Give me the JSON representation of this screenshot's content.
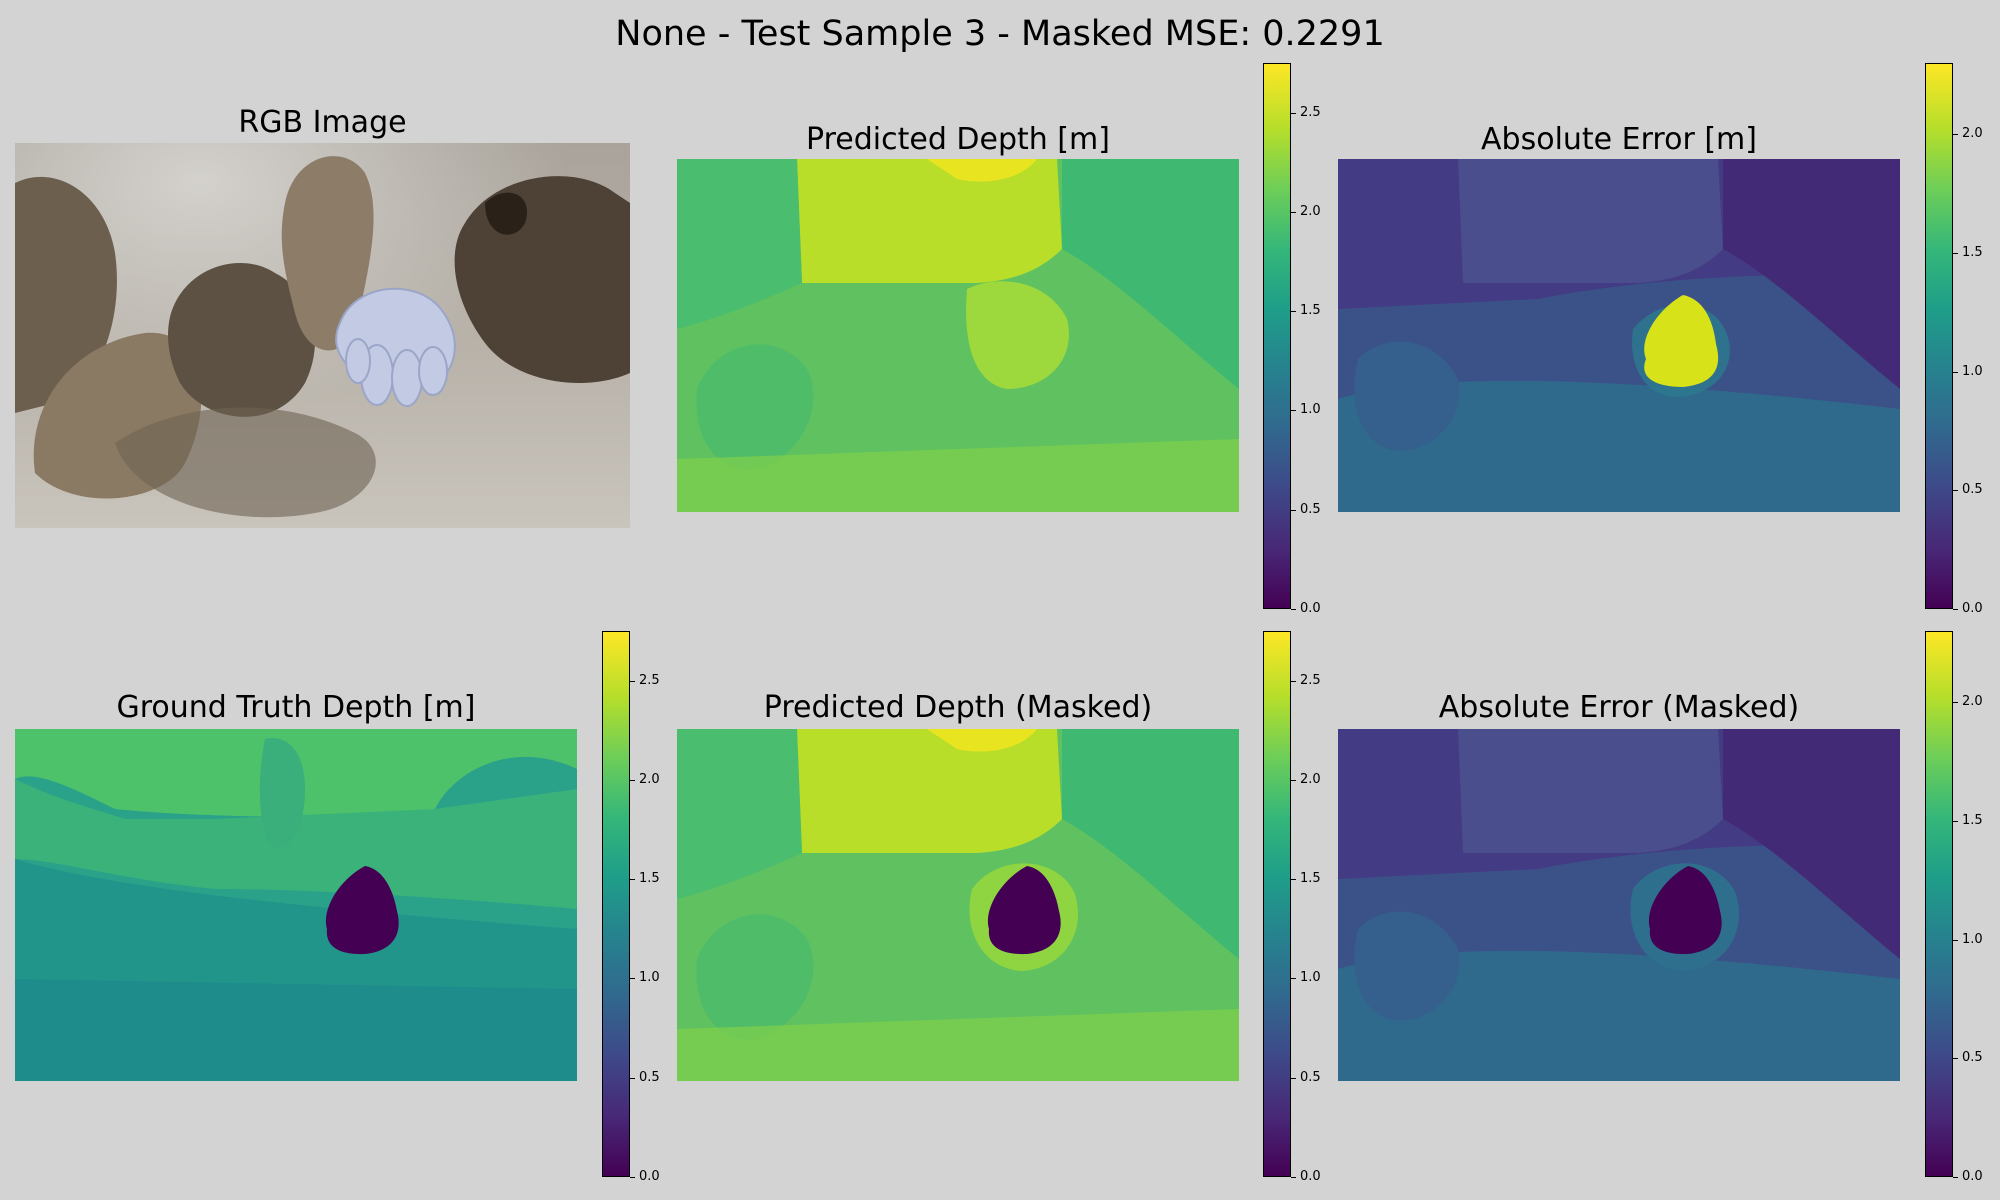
{
  "suptitle": "None - Test Sample 3 - Masked MSE: 0.2291",
  "colors": {
    "background": "#d3d3d3",
    "viridis": [
      "#440154",
      "#482878",
      "#3e4989",
      "#31688e",
      "#26828e",
      "#1f9e89",
      "#35b779",
      "#6ece58",
      "#b5de2b",
      "#fde725"
    ]
  },
  "panels": [
    {
      "id": "rgb",
      "title": "RGB Image",
      "kind": "photo"
    },
    {
      "id": "pred",
      "title": "Predicted Depth [m]",
      "kind": "heatmap",
      "colorbar": "depth"
    },
    {
      "id": "err",
      "title": "Absolute Error [m]",
      "kind": "heatmap",
      "colorbar": "error"
    },
    {
      "id": "gt",
      "title": "Ground Truth Depth [m]",
      "kind": "heatmap",
      "colorbar": "depth"
    },
    {
      "id": "predm",
      "title": "Predicted Depth (Masked)",
      "kind": "heatmap",
      "colorbar": "depth"
    },
    {
      "id": "errm",
      "title": "Absolute Error (Masked)",
      "kind": "heatmap",
      "colorbar": "error"
    }
  ],
  "chart_data": [
    {
      "type": "heatmap",
      "title": "Predicted Depth [m]",
      "colormap": "viridis",
      "colorbar": {
        "range": [
          0,
          2.75
        ],
        "ticks": [
          "0.0",
          "0.5",
          "1.0",
          "1.5",
          "2.0",
          "2.5"
        ]
      }
    },
    {
      "type": "heatmap",
      "title": "Absolute Error [m]",
      "colormap": "viridis",
      "colorbar": {
        "range": [
          0,
          2.3
        ],
        "ticks": [
          "0.0",
          "0.5",
          "1.0",
          "1.5",
          "2.0"
        ]
      }
    },
    {
      "type": "heatmap",
      "title": "Ground Truth Depth [m]",
      "colormap": "viridis",
      "colorbar": {
        "range": [
          0,
          2.75
        ],
        "ticks": [
          "0.0",
          "0.5",
          "1.0",
          "1.5",
          "2.0",
          "2.5"
        ]
      }
    },
    {
      "type": "heatmap",
      "title": "Predicted Depth (Masked)",
      "colormap": "viridis",
      "colorbar": {
        "range": [
          0,
          2.75
        ],
        "ticks": [
          "0.0",
          "0.5",
          "1.0",
          "1.5",
          "2.0",
          "2.5"
        ]
      }
    },
    {
      "type": "heatmap",
      "title": "Absolute Error (Masked)",
      "colormap": "viridis",
      "colorbar": {
        "range": [
          0,
          2.3
        ],
        "ticks": [
          "0.0",
          "0.5",
          "1.0",
          "1.5",
          "2.0"
        ]
      }
    }
  ]
}
